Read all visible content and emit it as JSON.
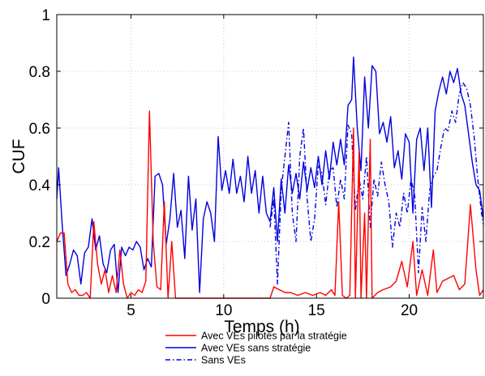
{
  "chart_data": {
    "type": "line",
    "xlabel": "Temps (h)",
    "ylabel": "CUF",
    "xlim": [
      1,
      24
    ],
    "ylim": [
      0,
      1
    ],
    "xticks": [
      5,
      10,
      15,
      20
    ],
    "yticks": [
      0,
      0.2,
      0.4,
      0.6,
      0.8,
      1
    ],
    "xtick_labels": [
      "5",
      "10",
      "15",
      "20"
    ],
    "ytick_labels": [
      "0",
      "0.2",
      "0.4",
      "0.6",
      "0.8",
      "1"
    ],
    "grid": true,
    "legend_position": "bottom-center",
    "series": [
      {
        "name": "Avec VEs pilotés par la stratégie",
        "color": "#ff0000",
        "style": "solid",
        "points": [
          [
            1.0,
            0.2
          ],
          [
            1.2,
            0.23
          ],
          [
            1.4,
            0.23
          ],
          [
            1.6,
            0.05
          ],
          [
            1.8,
            0.02
          ],
          [
            2.0,
            0.03
          ],
          [
            2.2,
            0.01
          ],
          [
            2.4,
            0.01
          ],
          [
            2.6,
            0.02
          ],
          [
            2.8,
            0.0
          ],
          [
            3.0,
            0.27
          ],
          [
            3.2,
            0.12
          ],
          [
            3.4,
            0.05
          ],
          [
            3.6,
            0.1
          ],
          [
            3.8,
            0.02
          ],
          [
            4.0,
            0.08
          ],
          [
            4.2,
            0.02
          ],
          [
            4.4,
            0.17
          ],
          [
            4.6,
            0.05
          ],
          [
            4.8,
            0.0
          ],
          [
            5.0,
            0.02
          ],
          [
            5.2,
            0.01
          ],
          [
            5.4,
            0.03
          ],
          [
            5.6,
            0.02
          ],
          [
            5.8,
            0.06
          ],
          [
            6.0,
            0.66
          ],
          [
            6.2,
            0.2
          ],
          [
            6.4,
            0.04
          ],
          [
            6.6,
            0.03
          ],
          [
            6.8,
            0.34
          ],
          [
            7.0,
            0.0
          ],
          [
            7.2,
            0.2
          ],
          [
            7.4,
            0.0
          ],
          [
            12.5,
            0.0
          ],
          [
            12.7,
            0.04
          ],
          [
            13.0,
            0.03
          ],
          [
            13.3,
            0.02
          ],
          [
            13.6,
            0.02
          ],
          [
            14.0,
            0.01
          ],
          [
            14.4,
            0.02
          ],
          [
            14.8,
            0.01
          ],
          [
            15.2,
            0.02
          ],
          [
            15.5,
            0.01
          ],
          [
            15.8,
            0.03
          ],
          [
            16.0,
            0.01
          ],
          [
            16.2,
            0.34
          ],
          [
            16.4,
            0.01
          ],
          [
            16.6,
            0.0
          ],
          [
            16.8,
            0.01
          ],
          [
            17.0,
            0.6
          ],
          [
            17.1,
            0.0
          ],
          [
            17.3,
            0.52
          ],
          [
            17.4,
            0.0
          ],
          [
            17.6,
            0.3
          ],
          [
            17.7,
            0.0
          ],
          [
            17.9,
            0.56
          ],
          [
            18.0,
            0.0
          ],
          [
            18.3,
            0.02
          ],
          [
            18.6,
            0.03
          ],
          [
            19.0,
            0.04
          ],
          [
            19.3,
            0.06
          ],
          [
            19.6,
            0.13
          ],
          [
            19.9,
            0.04
          ],
          [
            20.2,
            0.2
          ],
          [
            20.4,
            0.01
          ],
          [
            20.7,
            0.1
          ],
          [
            21.0,
            0.01
          ],
          [
            21.3,
            0.17
          ],
          [
            21.5,
            0.02
          ],
          [
            21.8,
            0.06
          ],
          [
            22.1,
            0.07
          ],
          [
            22.4,
            0.08
          ],
          [
            22.7,
            0.03
          ],
          [
            23.0,
            0.05
          ],
          [
            23.3,
            0.33
          ],
          [
            23.6,
            0.1
          ],
          [
            23.8,
            0.01
          ],
          [
            24.0,
            0.03
          ]
        ]
      },
      {
        "name": "Avec VEs sans stratégie",
        "color": "#0000e0",
        "style": "solid",
        "points": [
          [
            1.0,
            0.35
          ],
          [
            1.1,
            0.46
          ],
          [
            1.3,
            0.25
          ],
          [
            1.5,
            0.08
          ],
          [
            1.7,
            0.12
          ],
          [
            1.9,
            0.17
          ],
          [
            2.1,
            0.15
          ],
          [
            2.3,
            0.05
          ],
          [
            2.5,
            0.16
          ],
          [
            2.7,
            0.18
          ],
          [
            2.9,
            0.28
          ],
          [
            3.1,
            0.17
          ],
          [
            3.3,
            0.22
          ],
          [
            3.5,
            0.12
          ],
          [
            3.7,
            0.09
          ],
          [
            3.9,
            0.17
          ],
          [
            4.1,
            0.19
          ],
          [
            4.3,
            0.02
          ],
          [
            4.5,
            0.18
          ],
          [
            4.7,
            0.15
          ],
          [
            4.9,
            0.18
          ],
          [
            5.1,
            0.17
          ],
          [
            5.3,
            0.2
          ],
          [
            5.5,
            0.18
          ],
          [
            5.7,
            0.1
          ],
          [
            5.9,
            0.14
          ],
          [
            6.1,
            0.11
          ],
          [
            6.3,
            0.43
          ],
          [
            6.5,
            0.44
          ],
          [
            6.7,
            0.4
          ],
          [
            6.9,
            0.19
          ],
          [
            7.1,
            0.28
          ],
          [
            7.3,
            0.44
          ],
          [
            7.5,
            0.25
          ],
          [
            7.7,
            0.31
          ],
          [
            7.9,
            0.14
          ],
          [
            8.1,
            0.43
          ],
          [
            8.3,
            0.24
          ],
          [
            8.5,
            0.35
          ],
          [
            8.7,
            0.02
          ],
          [
            8.9,
            0.28
          ],
          [
            9.1,
            0.34
          ],
          [
            9.3,
            0.3
          ],
          [
            9.5,
            0.2
          ],
          [
            9.7,
            0.57
          ],
          [
            9.9,
            0.38
          ],
          [
            10.1,
            0.45
          ],
          [
            10.3,
            0.37
          ],
          [
            10.5,
            0.49
          ],
          [
            10.7,
            0.37
          ],
          [
            10.9,
            0.43
          ],
          [
            11.1,
            0.34
          ],
          [
            11.3,
            0.5
          ],
          [
            11.5,
            0.37
          ],
          [
            11.7,
            0.45
          ],
          [
            11.9,
            0.3
          ],
          [
            12.1,
            0.43
          ],
          [
            12.3,
            0.3
          ],
          [
            12.5,
            0.27
          ],
          [
            12.7,
            0.39
          ],
          [
            12.9,
            0.2
          ],
          [
            13.1,
            0.42
          ],
          [
            13.3,
            0.3
          ],
          [
            13.5,
            0.47
          ],
          [
            13.7,
            0.37
          ],
          [
            13.9,
            0.44
          ],
          [
            14.1,
            0.35
          ],
          [
            14.3,
            0.48
          ],
          [
            14.5,
            0.38
          ],
          [
            14.7,
            0.46
          ],
          [
            14.9,
            0.39
          ],
          [
            15.1,
            0.5
          ],
          [
            15.3,
            0.4
          ],
          [
            15.5,
            0.52
          ],
          [
            15.7,
            0.42
          ],
          [
            15.9,
            0.55
          ],
          [
            16.1,
            0.47
          ],
          [
            16.3,
            0.56
          ],
          [
            16.5,
            0.47
          ],
          [
            16.7,
            0.68
          ],
          [
            16.9,
            0.7
          ],
          [
            17.0,
            0.85
          ],
          [
            17.2,
            0.6
          ],
          [
            17.4,
            0.45
          ],
          [
            17.6,
            0.78
          ],
          [
            17.8,
            0.6
          ],
          [
            18.0,
            0.82
          ],
          [
            18.2,
            0.8
          ],
          [
            18.4,
            0.58
          ],
          [
            18.6,
            0.62
          ],
          [
            18.8,
            0.55
          ],
          [
            19.0,
            0.64
          ],
          [
            19.2,
            0.46
          ],
          [
            19.4,
            0.52
          ],
          [
            19.6,
            0.42
          ],
          [
            19.8,
            0.58
          ],
          [
            20.0,
            0.55
          ],
          [
            20.2,
            0.3
          ],
          [
            20.4,
            0.56
          ],
          [
            20.6,
            0.6
          ],
          [
            20.8,
            0.45
          ],
          [
            21.0,
            0.6
          ],
          [
            21.2,
            0.32
          ],
          [
            21.4,
            0.66
          ],
          [
            21.6,
            0.73
          ],
          [
            21.8,
            0.78
          ],
          [
            22.0,
            0.72
          ],
          [
            22.2,
            0.8
          ],
          [
            22.4,
            0.76
          ],
          [
            22.6,
            0.81
          ],
          [
            22.8,
            0.72
          ],
          [
            23.0,
            0.68
          ],
          [
            23.2,
            0.58
          ],
          [
            23.4,
            0.48
          ],
          [
            23.6,
            0.4
          ],
          [
            23.8,
            0.38
          ],
          [
            24.0,
            0.28
          ]
        ]
      },
      {
        "name": "Sans VEs",
        "color": "#0000e0",
        "style": "dash-dot",
        "points": [
          [
            12.5,
            0.25
          ],
          [
            12.7,
            0.35
          ],
          [
            12.9,
            0.05
          ],
          [
            13.1,
            0.38
          ],
          [
            13.3,
            0.5
          ],
          [
            13.5,
            0.62
          ],
          [
            13.7,
            0.3
          ],
          [
            13.9,
            0.2
          ],
          [
            14.1,
            0.5
          ],
          [
            14.3,
            0.6
          ],
          [
            14.5,
            0.35
          ],
          [
            14.7,
            0.2
          ],
          [
            14.9,
            0.28
          ],
          [
            15.1,
            0.47
          ],
          [
            15.3,
            0.44
          ],
          [
            15.5,
            0.33
          ],
          [
            15.7,
            0.45
          ],
          [
            15.9,
            0.46
          ],
          [
            16.1,
            0.32
          ],
          [
            16.3,
            0.42
          ],
          [
            16.5,
            0.35
          ],
          [
            16.7,
            0.61
          ],
          [
            16.9,
            0.58
          ],
          [
            17.1,
            0.31
          ],
          [
            17.3,
            0.42
          ],
          [
            17.5,
            0.35
          ],
          [
            17.7,
            0.5
          ],
          [
            17.9,
            0.25
          ],
          [
            18.1,
            0.42
          ],
          [
            18.3,
            0.36
          ],
          [
            18.5,
            0.48
          ],
          [
            18.7,
            0.4
          ],
          [
            18.9,
            0.34
          ],
          [
            19.1,
            0.18
          ],
          [
            19.3,
            0.3
          ],
          [
            19.5,
            0.25
          ],
          [
            19.7,
            0.37
          ],
          [
            19.9,
            0.3
          ],
          [
            20.1,
            0.42
          ],
          [
            20.3,
            0.36
          ],
          [
            20.5,
            0.09
          ],
          [
            20.7,
            0.32
          ],
          [
            20.9,
            0.2
          ],
          [
            21.1,
            0.38
          ],
          [
            21.3,
            0.43
          ],
          [
            21.5,
            0.45
          ],
          [
            21.7,
            0.53
          ],
          [
            21.9,
            0.6
          ],
          [
            22.1,
            0.59
          ],
          [
            22.3,
            0.66
          ],
          [
            22.5,
            0.62
          ],
          [
            22.7,
            0.72
          ],
          [
            22.9,
            0.76
          ],
          [
            23.1,
            0.74
          ],
          [
            23.3,
            0.68
          ],
          [
            23.5,
            0.57
          ],
          [
            23.7,
            0.42
          ],
          [
            23.9,
            0.3
          ],
          [
            24.0,
            0.26
          ]
        ]
      }
    ]
  }
}
